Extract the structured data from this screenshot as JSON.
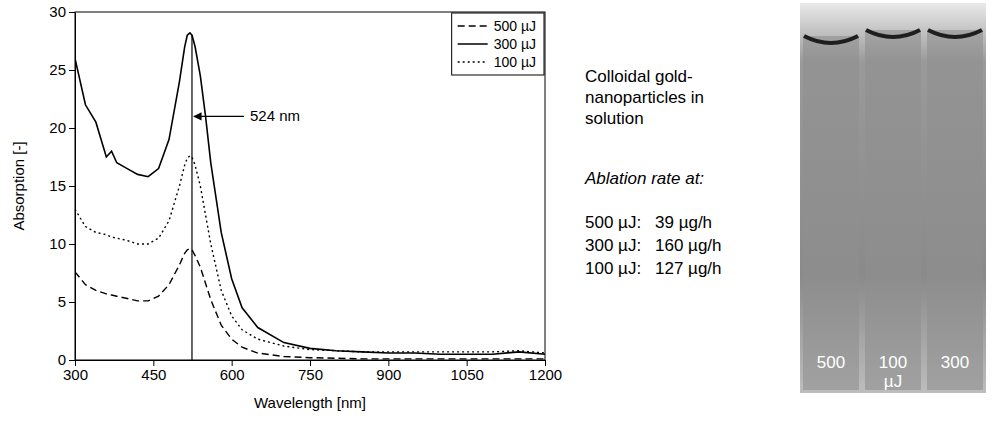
{
  "chart_data": {
    "type": "line",
    "x_label": "Wavelength [nm]",
    "y_label": "Absorption [-]",
    "xlim": [
      300,
      1200
    ],
    "xticks": [
      300,
      450,
      600,
      750,
      900,
      1050,
      1200
    ],
    "ylim": [
      0,
      30
    ],
    "yticks": [
      0,
      5,
      10,
      15,
      20,
      25,
      30
    ],
    "grid": false,
    "legend": "upper right",
    "x": [
      300,
      320,
      340,
      360,
      370,
      380,
      400,
      420,
      440,
      460,
      480,
      500,
      510,
      515,
      520,
      524,
      530,
      540,
      550,
      560,
      580,
      600,
      620,
      650,
      700,
      750,
      800,
      850,
      900,
      950,
      1000,
      1050,
      1100,
      1150,
      1200
    ],
    "series": [
      {
        "name": "500 µJ",
        "color": "#000000",
        "line_style": "dashed",
        "values": [
          7.6,
          6.5,
          6.0,
          5.7,
          5.6,
          5.5,
          5.3,
          5.1,
          5.1,
          5.5,
          6.5,
          8.2,
          9.2,
          9.5,
          9.6,
          9.5,
          9.0,
          8.0,
          6.6,
          5.2,
          3.0,
          1.8,
          1.1,
          0.6,
          0.3,
          0.2,
          0.15,
          0.1,
          0.1,
          0.1,
          0.1,
          0.1,
          0.1,
          0.1,
          0.1
        ]
      },
      {
        "name": "300 µJ",
        "color": "#000000",
        "line_style": "solid",
        "values": [
          26.0,
          22.0,
          20.5,
          17.5,
          18.0,
          17.0,
          16.5,
          16.0,
          15.8,
          16.5,
          19.0,
          24.0,
          27.0,
          28.0,
          28.2,
          28.0,
          27.0,
          24.5,
          21.0,
          17.0,
          11.0,
          7.0,
          4.5,
          2.8,
          1.5,
          1.0,
          0.8,
          0.7,
          0.6,
          0.6,
          0.5,
          0.5,
          0.5,
          0.7,
          0.5
        ]
      },
      {
        "name": "100 µJ",
        "color": "#000000",
        "line_style": "dotted",
        "values": [
          13.0,
          11.5,
          11.0,
          10.8,
          10.6,
          10.5,
          10.3,
          10.0,
          10.0,
          10.5,
          12.0,
          15.0,
          16.8,
          17.4,
          17.6,
          17.5,
          16.8,
          15.0,
          12.5,
          10.0,
          6.0,
          3.8,
          2.6,
          1.8,
          1.2,
          0.9,
          0.8,
          0.7,
          0.7,
          0.7,
          0.7,
          0.7,
          0.7,
          0.8,
          0.6
        ]
      }
    ],
    "peak_line": {
      "x": 524,
      "y": [
        0,
        28
      ]
    },
    "annotations": [
      {
        "text": "524 nm",
        "x": 524,
        "y": 21
      }
    ]
  },
  "side_panel": {
    "title_lines": [
      "Colloidal gold-",
      "nanoparticles in",
      "solution"
    ],
    "subtitle": "Ablation rate at:",
    "rows": [
      {
        "energy": "500 µJ:",
        "rate": "39 µg/h"
      },
      {
        "energy": "300 µJ:",
        "rate": "160 µg/h"
      },
      {
        "energy": "100 µJ:",
        "rate": "127 µg/h"
      }
    ],
    "photo_labels": [
      [
        "500"
      ],
      [
        "100",
        "µJ"
      ],
      [
        "300"
      ]
    ]
  }
}
